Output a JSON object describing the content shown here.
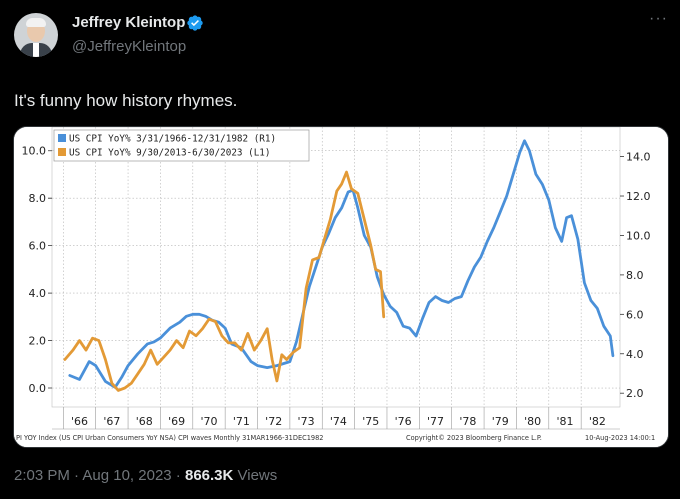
{
  "author": {
    "name": "Jeffrey Kleintop",
    "handle": "@JeffreyKleintop"
  },
  "more_icon": "···",
  "tweet_text": "It's funny how history rhymes.",
  "footer": {
    "time": "2:03 PM",
    "sep1": " · ",
    "date": "Aug 10, 2023",
    "sep2": " · ",
    "views_count": "866.3K",
    "views_label": " Views"
  },
  "chart_data": {
    "type": "line",
    "legend": [
      "US CPI YoY% 3/31/1966-12/31/1982 (R1)",
      "US CPI YoY% 9/30/2013-6/30/2023 (L1)"
    ],
    "footer_left": "PI YOY Index (US CPI Urban Consumers YoY NSA) CPI waves  Monthly 31MAR1966-31DEC1982",
    "footer_mid": "Copyright© 2023 Bloomberg Finance L.P.",
    "footer_right": "10-Aug-2023 14:00:1",
    "x_ticks": [
      "'66",
      "'67",
      "'68",
      "'69",
      "'70",
      "'71",
      "'72",
      "'73",
      "'74",
      "'75",
      "'76",
      "'77",
      "'78",
      "'79",
      "'80",
      "'81",
      "'82"
    ],
    "left_axis": {
      "ticks": [
        "10.0",
        "8.0",
        "6.0",
        "4.0",
        "2.0",
        "0.0"
      ],
      "values": [
        10,
        8,
        6,
        4,
        2,
        0
      ],
      "ylim": [
        -0.8,
        11
      ]
    },
    "right_axis": {
      "ticks": [
        "14.0",
        "12.0",
        "10.0",
        "8.0",
        "6.0",
        "4.0",
        "2.0"
      ],
      "values": [
        14,
        12,
        10,
        8,
        6,
        4,
        2
      ],
      "ylim": [
        1.3,
        15.5
      ]
    },
    "xlim": [
      1965.65,
      1983.2
    ],
    "series": [
      {
        "name": "US CPI YoY% 3/31/1966-12/31/1982 (R1)",
        "axis": "right",
        "color": "#4a90d9",
        "points": [
          [
            1966.2,
            2.9
          ],
          [
            1966.5,
            2.7
          ],
          [
            1966.8,
            3.6
          ],
          [
            1967.0,
            3.4
          ],
          [
            1967.3,
            2.6
          ],
          [
            1967.6,
            2.3
          ],
          [
            1967.8,
            2.8
          ],
          [
            1968.0,
            3.4
          ],
          [
            1968.3,
            4.0
          ],
          [
            1968.6,
            4.5
          ],
          [
            1968.8,
            4.6
          ],
          [
            1969.0,
            4.8
          ],
          [
            1969.3,
            5.3
          ],
          [
            1969.6,
            5.6
          ],
          [
            1969.8,
            5.9
          ],
          [
            1970.0,
            6.0
          ],
          [
            1970.2,
            6.0
          ],
          [
            1970.4,
            5.9
          ],
          [
            1970.6,
            5.7
          ],
          [
            1970.8,
            5.6
          ],
          [
            1971.0,
            5.3
          ],
          [
            1971.2,
            4.5
          ],
          [
            1971.5,
            4.3
          ],
          [
            1971.8,
            3.6
          ],
          [
            1972.0,
            3.4
          ],
          [
            1972.3,
            3.3
          ],
          [
            1972.6,
            3.4
          ],
          [
            1972.8,
            3.5
          ],
          [
            1973.0,
            3.6
          ],
          [
            1973.2,
            4.6
          ],
          [
            1973.4,
            6.0
          ],
          [
            1973.6,
            7.4
          ],
          [
            1973.8,
            8.4
          ],
          [
            1974.0,
            9.4
          ],
          [
            1974.2,
            10.1
          ],
          [
            1974.4,
            10.9
          ],
          [
            1974.6,
            11.4
          ],
          [
            1974.8,
            12.2
          ],
          [
            1974.95,
            12.3
          ],
          [
            1975.1,
            11.4
          ],
          [
            1975.3,
            10.0
          ],
          [
            1975.5,
            9.4
          ],
          [
            1975.7,
            7.9
          ],
          [
            1975.9,
            7.0
          ],
          [
            1976.1,
            6.4
          ],
          [
            1976.3,
            6.1
          ],
          [
            1976.5,
            5.4
          ],
          [
            1976.7,
            5.3
          ],
          [
            1976.9,
            4.9
          ],
          [
            1977.1,
            5.8
          ],
          [
            1977.3,
            6.6
          ],
          [
            1977.5,
            6.9
          ],
          [
            1977.7,
            6.7
          ],
          [
            1977.9,
            6.6
          ],
          [
            1978.1,
            6.8
          ],
          [
            1978.3,
            6.9
          ],
          [
            1978.5,
            7.7
          ],
          [
            1978.7,
            8.4
          ],
          [
            1978.9,
            8.9
          ],
          [
            1979.1,
            9.7
          ],
          [
            1979.3,
            10.4
          ],
          [
            1979.5,
            11.2
          ],
          [
            1979.7,
            12.0
          ],
          [
            1979.9,
            13.1
          ],
          [
            1980.1,
            14.2
          ],
          [
            1980.25,
            14.8
          ],
          [
            1980.4,
            14.3
          ],
          [
            1980.6,
            13.1
          ],
          [
            1980.8,
            12.6
          ],
          [
            1981.0,
            11.8
          ],
          [
            1981.2,
            10.4
          ],
          [
            1981.4,
            9.7
          ],
          [
            1981.55,
            10.9
          ],
          [
            1981.7,
            11.0
          ],
          [
            1981.9,
            9.8
          ],
          [
            1982.1,
            7.6
          ],
          [
            1982.3,
            6.7
          ],
          [
            1982.5,
            6.3
          ],
          [
            1982.7,
            5.4
          ],
          [
            1982.9,
            4.9
          ],
          [
            1982.98,
            3.9
          ]
        ]
      },
      {
        "name": "US CPI YoY% 9/30/2013-6/30/2023 (L1)",
        "axis": "left",
        "color": "#e39a36",
        "points": [
          [
            1966.05,
            1.2
          ],
          [
            1966.3,
            1.6
          ],
          [
            1966.5,
            2.0
          ],
          [
            1966.7,
            1.6
          ],
          [
            1966.9,
            2.1
          ],
          [
            1967.1,
            2.0
          ],
          [
            1967.3,
            1.2
          ],
          [
            1967.5,
            0.2
          ],
          [
            1967.7,
            -0.1
          ],
          [
            1967.9,
            0.0
          ],
          [
            1968.1,
            0.2
          ],
          [
            1968.3,
            0.6
          ],
          [
            1968.5,
            1.0
          ],
          [
            1968.7,
            1.6
          ],
          [
            1968.9,
            1.0
          ],
          [
            1969.1,
            1.3
          ],
          [
            1969.3,
            1.6
          ],
          [
            1969.5,
            2.0
          ],
          [
            1969.7,
            1.7
          ],
          [
            1969.9,
            2.4
          ],
          [
            1970.1,
            2.2
          ],
          [
            1970.3,
            2.5
          ],
          [
            1970.5,
            2.9
          ],
          [
            1970.7,
            2.8
          ],
          [
            1970.9,
            2.2
          ],
          [
            1971.1,
            1.9
          ],
          [
            1971.3,
            1.9
          ],
          [
            1971.5,
            1.6
          ],
          [
            1971.7,
            2.3
          ],
          [
            1971.9,
            1.6
          ],
          [
            1972.1,
            2.0
          ],
          [
            1972.3,
            2.5
          ],
          [
            1972.45,
            1.2
          ],
          [
            1972.6,
            0.3
          ],
          [
            1972.75,
            1.4
          ],
          [
            1972.9,
            1.2
          ],
          [
            1973.1,
            1.5
          ],
          [
            1973.3,
            1.7
          ],
          [
            1973.5,
            4.2
          ],
          [
            1973.7,
            5.4
          ],
          [
            1973.9,
            5.5
          ],
          [
            1974.05,
            6.2
          ],
          [
            1974.25,
            7.1
          ],
          [
            1974.45,
            8.3
          ],
          [
            1974.6,
            8.6
          ],
          [
            1974.75,
            9.1
          ],
          [
            1974.9,
            8.4
          ],
          [
            1975.1,
            8.2
          ],
          [
            1975.3,
            7.1
          ],
          [
            1975.5,
            6.0
          ],
          [
            1975.65,
            5.0
          ],
          [
            1975.8,
            4.9
          ],
          [
            1975.9,
            3.0
          ]
        ]
      }
    ]
  }
}
